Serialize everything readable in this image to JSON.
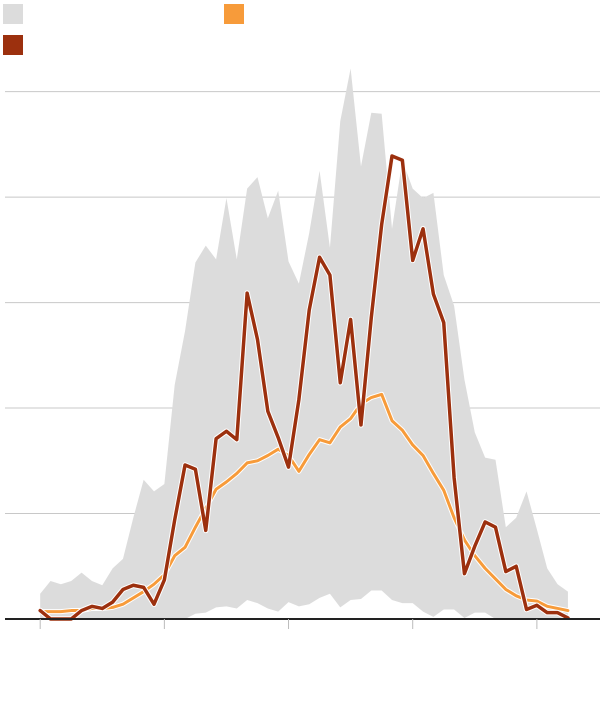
{
  "colors": {
    "range": "#dcdcdc",
    "average": "#f79b3a",
    "current": "#9c300e",
    "grid": "#c8c8c8",
    "axis": "#222222"
  },
  "legend": [
    {
      "key": "range",
      "label": ""
    },
    {
      "key": "average",
      "label": ""
    },
    {
      "key": "current",
      "label": ""
    }
  ],
  "chart_data": {
    "type": "line",
    "title": "",
    "xlabel": "",
    "ylabel": "",
    "x": [
      0,
      1,
      2,
      3,
      4,
      5,
      6,
      7,
      8,
      9,
      10,
      11,
      12,
      13,
      14,
      15,
      16,
      17,
      18,
      19,
      20,
      21,
      22,
      23,
      24,
      25,
      26,
      27,
      28,
      29,
      30,
      31,
      32,
      33,
      34,
      35,
      36,
      37,
      38,
      39,
      40,
      41,
      42,
      43,
      44,
      45,
      46,
      47,
      48,
      49,
      50,
      51
    ],
    "xlim": [
      -3.4,
      54.1
    ],
    "ylim": [
      0,
      5.3
    ],
    "grid": true,
    "yticks": [
      0,
      1,
      2,
      3,
      4,
      5
    ],
    "xticks": [
      0,
      12,
      24,
      36,
      48
    ],
    "series": [
      {
        "key": "range-max",
        "values": [
          0.24,
          0.36,
          0.33,
          0.36,
          0.44,
          0.36,
          0.32,
          0.48,
          0.57,
          0.96,
          1.32,
          1.21,
          1.28,
          2.22,
          2.73,
          3.38,
          3.54,
          3.41,
          3.99,
          3.41,
          4.08,
          4.19,
          3.8,
          4.06,
          3.39,
          3.18,
          3.66,
          4.25,
          3.52,
          4.72,
          5.22,
          4.29,
          4.8,
          4.79,
          3.7,
          4.35,
          4.08,
          3.99,
          4.04,
          3.26,
          2.97,
          2.27,
          1.77,
          1.53,
          1.51,
          0.87,
          0.96,
          1.21,
          0.85,
          0.48,
          0.33,
          0.26
        ]
      },
      {
        "key": "range-min",
        "values": [
          0,
          0,
          0,
          0,
          0,
          0,
          0,
          0,
          0,
          0,
          0,
          0,
          0,
          0,
          0,
          0.05,
          0.06,
          0.11,
          0.12,
          0.1,
          0.18,
          0.15,
          0.1,
          0.07,
          0.16,
          0.12,
          0.14,
          0.2,
          0.24,
          0.11,
          0.18,
          0.19,
          0.27,
          0.27,
          0.18,
          0.15,
          0.15,
          0.07,
          0.02,
          0.09,
          0.09,
          0.01,
          0.06,
          0.06,
          0,
          0,
          0,
          0,
          0,
          0,
          0,
          0
        ]
      },
      {
        "key": "average",
        "values": [
          0.07,
          0.07,
          0.07,
          0.08,
          0.08,
          0.1,
          0.1,
          0.11,
          0.14,
          0.2,
          0.26,
          0.33,
          0.42,
          0.6,
          0.68,
          0.87,
          1.05,
          1.23,
          1.3,
          1.38,
          1.48,
          1.5,
          1.55,
          1.61,
          1.55,
          1.4,
          1.56,
          1.7,
          1.67,
          1.82,
          1.9,
          2.04,
          2.1,
          2.13,
          1.88,
          1.79,
          1.65,
          1.55,
          1.38,
          1.22,
          0.96,
          0.75,
          0.6,
          0.48,
          0.38,
          0.28,
          0.22,
          0.18,
          0.17,
          0.12,
          0.1,
          0.08
        ]
      },
      {
        "key": "current",
        "values": [
          0.08,
          0,
          0,
          0,
          0.08,
          0.12,
          0.1,
          0.16,
          0.28,
          0.32,
          0.3,
          0.14,
          0.37,
          0.94,
          1.46,
          1.42,
          0.84,
          1.71,
          1.78,
          1.7,
          3.09,
          2.65,
          1.97,
          1.72,
          1.44,
          2.08,
          2.93,
          3.43,
          3.26,
          2.24,
          2.84,
          1.84,
          2.86,
          3.74,
          4.39,
          4.35,
          3.4,
          3.7,
          3.08,
          2.81,
          1.34,
          0.43,
          0.69,
          0.92,
          0.87,
          0.45,
          0.5,
          0.09,
          0.13,
          0.06,
          0.06,
          0.01
        ]
      }
    ]
  }
}
